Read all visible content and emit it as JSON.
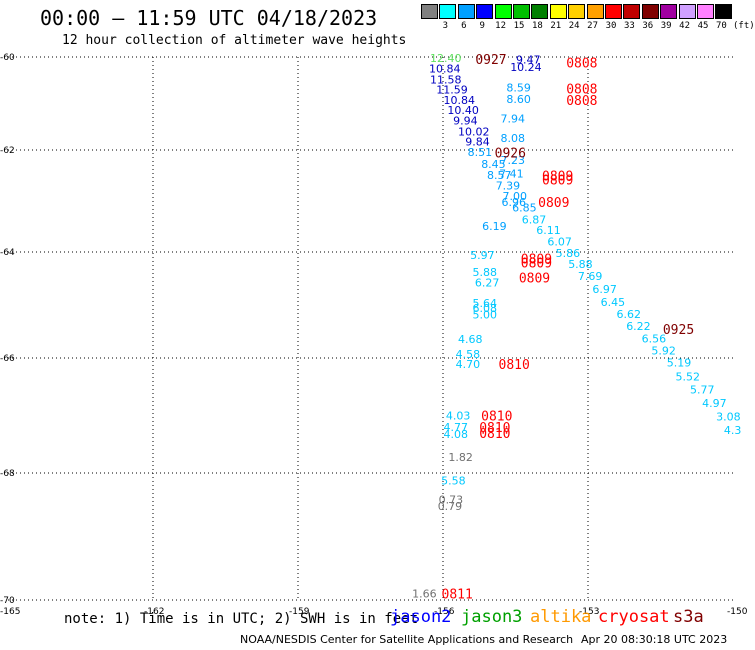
{
  "header": {
    "title": "00:00 – 11:59 UTC 04/18/2023",
    "subtitle": "12 hour collection of altimeter wave heights"
  },
  "legend": {
    "unit": "(ft)",
    "items": [
      {
        "label": "3",
        "color": "#808080"
      },
      {
        "label": "6",
        "color": "#00ffff"
      },
      {
        "label": "9",
        "color": "#00a0ff"
      },
      {
        "label": "12",
        "color": "#0000ff"
      },
      {
        "label": "15",
        "color": "#00ff00"
      },
      {
        "label": "18",
        "color": "#00c000"
      },
      {
        "label": "21",
        "color": "#008000"
      },
      {
        "label": "24",
        "color": "#ffff00"
      },
      {
        "label": "27",
        "color": "#ffd000"
      },
      {
        "label": "30",
        "color": "#ffa000"
      },
      {
        "label": "33",
        "color": "#ff0000"
      },
      {
        "label": "36",
        "color": "#c00000"
      },
      {
        "label": "39",
        "color": "#800000"
      },
      {
        "label": "42",
        "color": "#a000a0"
      },
      {
        "label": "45",
        "color": "#d0a0ff"
      },
      {
        "label": "70",
        "color": "#ff80ff"
      },
      {
        "label": "",
        "color": "#000000"
      }
    ]
  },
  "map": {
    "lat_labels": [
      "-60",
      "-62",
      "-64",
      "-66",
      "-68",
      "-70"
    ],
    "lon_labels": [
      "-165",
      "-162",
      "-159",
      "-156",
      "-153",
      "-150"
    ],
    "lat_values": [
      -60,
      -62,
      -64,
      -66,
      -68,
      -70
    ],
    "lon_values": [
      -165,
      -162,
      -159,
      -156,
      -153,
      -150
    ]
  },
  "values": [
    {
      "text": "12.40",
      "lat": -60.02,
      "lon": -155.98,
      "color": "#60e060"
    },
    {
      "text": "10.84",
      "lat": -60.25,
      "lon": -156.0,
      "color": "#0000c0"
    },
    {
      "text": "11.58",
      "lat": -60.48,
      "lon": -155.98,
      "color": "#0000c0"
    },
    {
      "text": "11.59",
      "lat": -60.7,
      "lon": -155.85,
      "color": "#0000c0"
    },
    {
      "text": "10.84",
      "lat": -60.92,
      "lon": -155.7,
      "color": "#0000c0"
    },
    {
      "text": "10.40",
      "lat": -61.14,
      "lon": -155.62,
      "color": "#0000c0"
    },
    {
      "text": "9.94",
      "lat": -61.37,
      "lon": -155.5,
      "color": "#0000c0"
    },
    {
      "text": "10.02",
      "lat": -61.6,
      "lon": -155.4,
      "color": "#0000c0"
    },
    {
      "text": "9.84",
      "lat": -61.82,
      "lon": -155.25,
      "color": "#0000c0"
    },
    {
      "text": "8.51",
      "lat": -62.04,
      "lon": -155.2,
      "color": "#00a0ff"
    },
    {
      "text": "8.45",
      "lat": -62.27,
      "lon": -154.92,
      "color": "#00a0ff"
    },
    {
      "text": "8.57",
      "lat": -62.49,
      "lon": -154.8,
      "color": "#00a0ff"
    },
    {
      "text": "7.39",
      "lat": -62.7,
      "lon": -154.62,
      "color": "#00a0ff"
    },
    {
      "text": "7.00",
      "lat": -62.9,
      "lon": -154.48,
      "color": "#00a0ff"
    },
    {
      "text": "6.96",
      "lat": -63.02,
      "lon": -154.5,
      "color": "#00a0ff"
    },
    {
      "text": "6.85",
      "lat": -63.13,
      "lon": -154.28,
      "color": "#00a0ff"
    },
    {
      "text": "6.87",
      "lat": -63.36,
      "lon": -154.08,
      "color": "#00c8ff"
    },
    {
      "text": "6.11",
      "lat": -63.57,
      "lon": -153.78,
      "color": "#00c8ff"
    },
    {
      "text": "6.07",
      "lat": -63.79,
      "lon": -153.55,
      "color": "#00c8ff"
    },
    {
      "text": "5.86",
      "lat": -64.02,
      "lon": -153.38,
      "color": "#00c8ff"
    },
    {
      "text": "5.88",
      "lat": -64.23,
      "lon": -153.12,
      "color": "#00c8ff"
    },
    {
      "text": "7.69",
      "lat": -64.45,
      "lon": -152.92,
      "color": "#00c8ff"
    },
    {
      "text": "6.97",
      "lat": -64.7,
      "lon": -152.62,
      "color": "#00c8ff"
    },
    {
      "text": "6.45",
      "lat": -64.94,
      "lon": -152.45,
      "color": "#00c8ff"
    },
    {
      "text": "6.62",
      "lat": -65.17,
      "lon": -152.12,
      "color": "#00c8ff"
    },
    {
      "text": "6.22",
      "lat": -65.4,
      "lon": -151.92,
      "color": "#00c8ff"
    },
    {
      "text": "6.56",
      "lat": -65.63,
      "lon": -151.6,
      "color": "#00c8ff"
    },
    {
      "text": "5.92",
      "lat": -65.86,
      "lon": -151.4,
      "color": "#00c8ff"
    },
    {
      "text": "5.19",
      "lat": -66.08,
      "lon": -151.08,
      "color": "#00c8ff"
    },
    {
      "text": "5.52",
      "lat": -66.32,
      "lon": -150.9,
      "color": "#00c8ff"
    },
    {
      "text": "5.77",
      "lat": -66.55,
      "lon": -150.6,
      "color": "#00c8ff"
    },
    {
      "text": "4.97",
      "lat": -66.78,
      "lon": -150.35,
      "color": "#00c8ff"
    },
    {
      "text": "3.08",
      "lat": -67.02,
      "lon": -150.06,
      "color": "#00c8ff"
    },
    {
      "text": "4.3",
      "lat": -67.25,
      "lon": -149.9,
      "color": "#00c8ff"
    },
    {
      "text": "9.47",
      "lat": -60.05,
      "lon": -154.2,
      "color": "#0000c0"
    },
    {
      "text": "10.24",
      "lat": -60.22,
      "lon": -154.32,
      "color": "#0000c0"
    },
    {
      "text": "8.59",
      "lat": -60.66,
      "lon": -154.4,
      "color": "#00a0ff"
    },
    {
      "text": "8.60",
      "lat": -60.9,
      "lon": -154.4,
      "color": "#00a0ff"
    },
    {
      "text": "7.94",
      "lat": -61.32,
      "lon": -154.52,
      "color": "#00a0ff"
    },
    {
      "text": "8.08",
      "lat": -61.74,
      "lon": -154.52,
      "color": "#00a0ff"
    },
    {
      "text": "7.23",
      "lat": -62.2,
      "lon": -154.52,
      "color": "#00a0ff"
    },
    {
      "text": "7.41",
      "lat": -62.46,
      "lon": -154.55,
      "color": "#00a0ff"
    },
    {
      "text": "6.19",
      "lat": -63.49,
      "lon": -154.9,
      "color": "#00a0ff"
    },
    {
      "text": "5.97",
      "lat": -64.06,
      "lon": -155.15,
      "color": "#00c8ff"
    },
    {
      "text": "5.88",
      "lat": -64.38,
      "lon": -155.1,
      "color": "#00c8ff"
    },
    {
      "text": "6.27",
      "lat": -64.58,
      "lon": -155.05,
      "color": "#00c8ff"
    },
    {
      "text": "5.64",
      "lat": -64.96,
      "lon": -155.1,
      "color": "#00c8ff"
    },
    {
      "text": "6.08",
      "lat": -65.06,
      "lon": -155.1,
      "color": "#00c8ff"
    },
    {
      "text": "5.00",
      "lat": -65.18,
      "lon": -155.1,
      "color": "#00c8ff"
    },
    {
      "text": "4.68",
      "lat": -65.64,
      "lon": -155.4,
      "color": "#00c8ff"
    },
    {
      "text": "4.58",
      "lat": -65.92,
      "lon": -155.45,
      "color": "#00c8ff"
    },
    {
      "text": "4.70",
      "lat": -66.1,
      "lon": -155.45,
      "color": "#00c8ff"
    },
    {
      "text": "4.03",
      "lat": -67.0,
      "lon": -155.65,
      "color": "#00c8ff"
    },
    {
      "text": "4.77",
      "lat": -67.2,
      "lon": -155.7,
      "color": "#00c8ff"
    },
    {
      "text": "4.08",
      "lat": -67.32,
      "lon": -155.7,
      "color": "#00c8ff"
    },
    {
      "text": "1.82",
      "lat": -67.72,
      "lon": -155.6,
      "color": "#707070"
    },
    {
      "text": "5.58",
      "lat": -68.12,
      "lon": -155.75,
      "color": "#00c8ff"
    },
    {
      "text": "0.73",
      "lat": -68.42,
      "lon": -155.8,
      "color": "#707070"
    },
    {
      "text": "0.79",
      "lat": -68.52,
      "lon": -155.82,
      "color": "#707070"
    },
    {
      "text": "1.66",
      "lat": -69.9,
      "lon": -156.35,
      "color": "#707070"
    }
  ],
  "times": [
    {
      "text": "0927",
      "lat": -60.04,
      "lon": -155.0,
      "color": "#800000"
    },
    {
      "text": "0808",
      "lat": -60.12,
      "lon": -153.12,
      "color": "#ff0000"
    },
    {
      "text": "0808",
      "lat": -60.68,
      "lon": -153.12,
      "color": "#ff0000"
    },
    {
      "text": "0808",
      "lat": -60.92,
      "lon": -153.12,
      "color": "#ff0000"
    },
    {
      "text": "0926",
      "lat": -62.05,
      "lon": -154.6,
      "color": "#800000"
    },
    {
      "text": "0809",
      "lat": -62.5,
      "lon": -153.62,
      "color": "#ff0000"
    },
    {
      "text": "0809",
      "lat": -62.58,
      "lon": -153.62,
      "color": "#ff0000"
    },
    {
      "text": "0809",
      "lat": -63.02,
      "lon": -153.7,
      "color": "#ff0000"
    },
    {
      "text": "0809",
      "lat": -64.12,
      "lon": -154.06,
      "color": "#ff0000"
    },
    {
      "text": "0809",
      "lat": -64.2,
      "lon": -154.06,
      "color": "#ff0000"
    },
    {
      "text": "0809",
      "lat": -64.48,
      "lon": -154.1,
      "color": "#ff0000"
    },
    {
      "text": "0925",
      "lat": -65.45,
      "lon": -151.12,
      "color": "#800000"
    },
    {
      "text": "0810",
      "lat": -66.1,
      "lon": -154.52,
      "color": "#ff0000"
    },
    {
      "text": "0810",
      "lat": -67.0,
      "lon": -154.88,
      "color": "#ff0000"
    },
    {
      "text": "0810",
      "lat": -67.2,
      "lon": -154.92,
      "color": "#ff0000"
    },
    {
      "text": "0810",
      "lat": -67.3,
      "lon": -154.92,
      "color": "#ff0000"
    },
    {
      "text": "0811",
      "lat": -69.9,
      "lon": -155.7,
      "color": "#ff0000"
    }
  ],
  "footer": {
    "note": "note: 1) Time is in UTC; 2) SWH is in feet",
    "satellites": [
      {
        "name": "jason2",
        "color": "#0000ff"
      },
      {
        "name": "jason3",
        "color": "#00a000"
      },
      {
        "name": "altika",
        "color": "#ff9900"
      },
      {
        "name": "cryosat",
        "color": "#ff0000"
      },
      {
        "name": "s3a",
        "color": "#800000"
      }
    ],
    "credit": "NOAA/NESDIS Center for Satellite Applications and Research",
    "timestamp": "Apr 20 08:30:18 UTC 2023"
  }
}
